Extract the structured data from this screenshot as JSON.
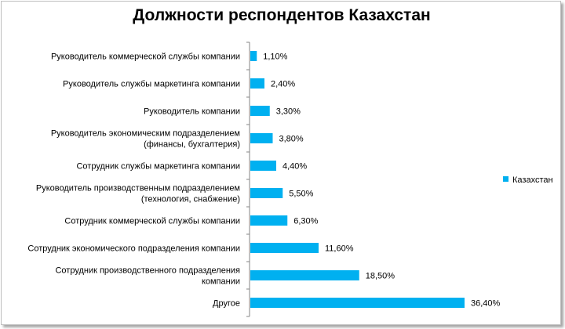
{
  "chart_data": {
    "type": "bar",
    "orientation": "horizontal",
    "title": "Должности респондентов Казахстан",
    "categories": [
      [
        "Руководитель коммерческой службы компании"
      ],
      [
        "Руководитель службы маркетинга компании"
      ],
      [
        "Руководитель компании"
      ],
      [
        "Руководитель экономическим подразделением",
        "(финансы, бухгалтерия)"
      ],
      [
        "Сотрудник службы маркетинга компании"
      ],
      [
        "Руководитель производственным подразделением",
        "(технология, снабжение)"
      ],
      [
        "Сотрудник коммерческой службы компании"
      ],
      [
        "Сотрудник экономического подразделения компании"
      ],
      [
        "Сотрудник производственного подразделения",
        "компании"
      ],
      [
        "Другое"
      ]
    ],
    "series": [
      {
        "name": "Казахстан",
        "values": [
          1.1,
          2.4,
          3.3,
          3.8,
          4.4,
          5.5,
          6.3,
          11.6,
          18.5,
          36.4
        ],
        "labels": [
          "1,10%",
          "2,40%",
          "3,30%",
          "3,80%",
          "4,40%",
          "5,50%",
          "6,30%",
          "11,60%",
          "18,50%",
          "36,40%"
        ]
      }
    ],
    "xlim": [
      0,
      40
    ],
    "grid": false,
    "legend_position": "right",
    "colors": {
      "bar": "#00B0F0",
      "axis": "#868686"
    }
  }
}
